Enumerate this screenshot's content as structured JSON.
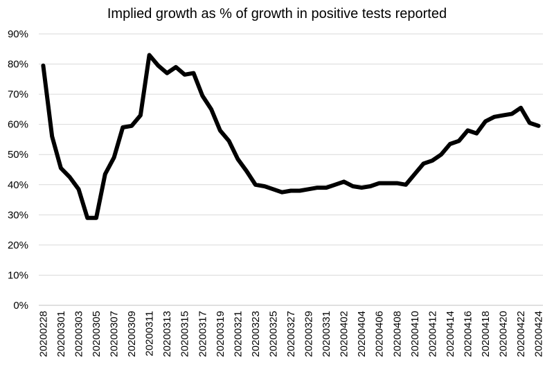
{
  "chart_data": {
    "type": "line",
    "title": "Implied growth as % of growth in positive tests reported",
    "xlabel": "",
    "ylabel": "",
    "ylim": [
      0,
      90
    ],
    "y_ticks": [
      0,
      10,
      20,
      30,
      40,
      50,
      60,
      70,
      80,
      90
    ],
    "y_tick_labels": [
      "0%",
      "10%",
      "20%",
      "30%",
      "40%",
      "50%",
      "60%",
      "70%",
      "80%",
      "90%"
    ],
    "grid": true,
    "legend": "none",
    "x": [
      "20200228",
      "20200229",
      "20200301",
      "20200302",
      "20200303",
      "20200304",
      "20200305",
      "20200306",
      "20200307",
      "20200308",
      "20200309",
      "20200310",
      "20200311",
      "20200312",
      "20200313",
      "20200314",
      "20200315",
      "20200316",
      "20200317",
      "20200318",
      "20200319",
      "20200320",
      "20200321",
      "20200322",
      "20200323",
      "20200324",
      "20200325",
      "20200326",
      "20200327",
      "20200328",
      "20200329",
      "20200330",
      "20200331",
      "20200401",
      "20200402",
      "20200403",
      "20200404",
      "20200405",
      "20200406",
      "20200407",
      "20200408",
      "20200409",
      "20200410",
      "20200411",
      "20200412",
      "20200413",
      "20200414",
      "20200415",
      "20200416",
      "20200417",
      "20200418",
      "20200419",
      "20200420",
      "20200421",
      "20200422",
      "20200423",
      "20200424"
    ],
    "x_tick_labels": [
      "20200228",
      "20200301",
      "20200303",
      "20200305",
      "20200307",
      "20200309",
      "20200311",
      "20200313",
      "20200315",
      "20200317",
      "20200319",
      "20200321",
      "20200323",
      "20200325",
      "20200327",
      "20200329",
      "20200331",
      "20200402",
      "20200404",
      "20200406",
      "20200408",
      "20200410",
      "20200412",
      "20200414",
      "20200416",
      "20200418",
      "20200420",
      "20200422",
      "20200424"
    ],
    "series": [
      {
        "color": "#000000",
        "values": [
          79.5,
          56,
          45.5,
          42.5,
          38.5,
          29,
          29,
          43.5,
          49,
          59,
          59.5,
          63,
          83,
          79.5,
          77,
          79,
          76.5,
          77,
          69.5,
          65,
          58,
          54.5,
          48.5,
          44.5,
          40,
          39.5,
          38.5,
          37.5,
          38,
          38,
          38.5,
          39,
          39,
          40,
          41,
          39.5,
          39,
          39.5,
          40.5,
          40.5,
          40.5,
          40,
          43.5,
          47,
          48,
          50,
          53.5,
          54.5,
          58,
          57,
          61,
          62.5,
          63,
          63.5,
          65.5,
          60.5,
          59.5
        ]
      }
    ]
  }
}
